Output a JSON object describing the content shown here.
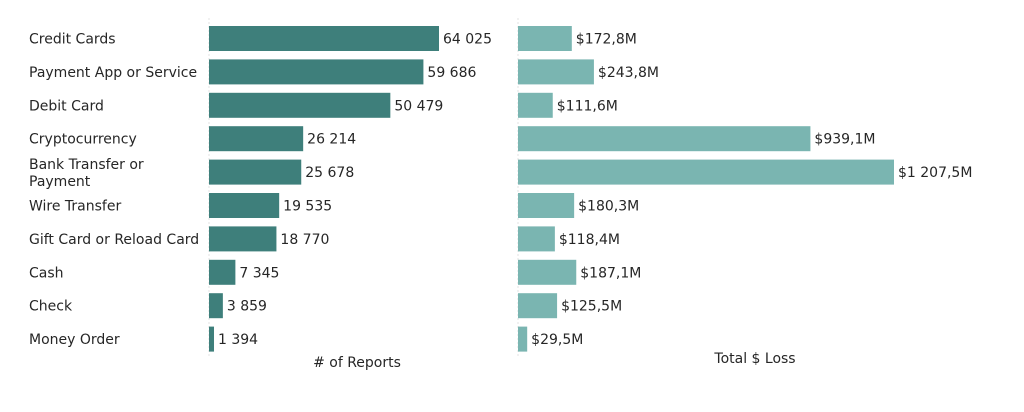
{
  "chart_data": [
    {
      "type": "bar",
      "orientation": "horizontal",
      "xlabel": "# of Reports",
      "ylabel": "",
      "categories": [
        [
          "Credit Cards"
        ],
        [
          "Payment App or Service"
        ],
        [
          "Debit Card"
        ],
        [
          "Cryptocurrency"
        ],
        [
          "Bank Transfer or",
          "Payment"
        ],
        [
          "Wire Transfer"
        ],
        [
          "Gift Card or Reload Card"
        ],
        [
          "Cash"
        ],
        [
          "Check"
        ],
        [
          "Money Order"
        ]
      ],
      "values": [
        64025,
        59686,
        50479,
        26214,
        25678,
        19535,
        18770,
        7345,
        3859,
        1394
      ],
      "labels": [
        "64 025",
        "59 686",
        "50 479",
        "26 214",
        "25 678",
        "19 535",
        "18 770",
        "7 345",
        "3 859",
        "1 394"
      ],
      "color": "#3e7f7b",
      "xlim": [
        0,
        64025
      ]
    },
    {
      "type": "bar",
      "orientation": "horizontal",
      "xlabel": "Total $ Loss",
      "ylabel": "",
      "unit": "millions USD",
      "values": [
        172.8,
        243.8,
        111.6,
        939.1,
        1207.5,
        180.3,
        118.4,
        187.1,
        125.5,
        29.5
      ],
      "labels": [
        "$172,8M",
        "$243,8M",
        "$111,6M",
        "$939,1M",
        "$1 207,5M",
        "$180,3M",
        "$118,4M",
        "$187,1M",
        "$125,5M",
        "$29,5M"
      ],
      "color": "#7ab5b1",
      "xlim": [
        0,
        1207.5
      ]
    }
  ]
}
